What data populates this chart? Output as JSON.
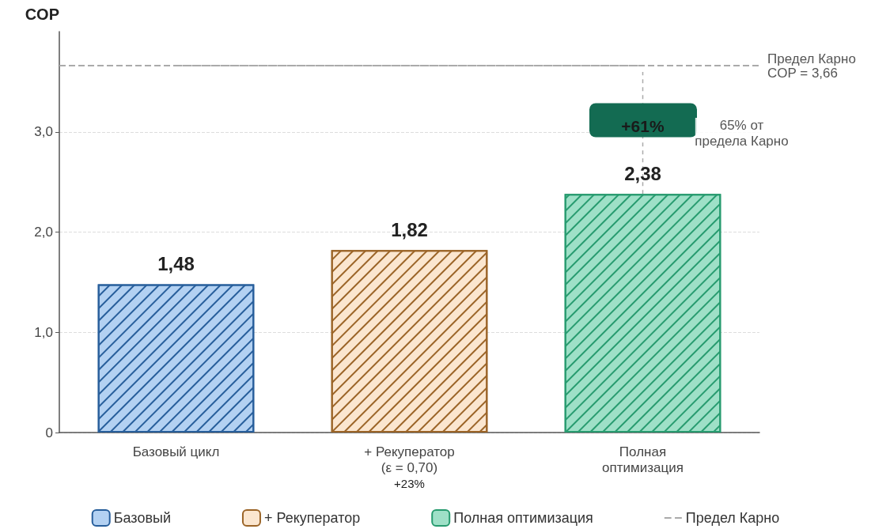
{
  "chart_data": {
    "type": "bar",
    "ylabel": "COP",
    "categories": [
      "Базовый цикл",
      "+ Рекуператор\n(ε = 0,70)",
      "Полная\nоптимизация"
    ],
    "series": [
      {
        "name": "Базовый",
        "color": "#b3d1f2",
        "values": [
          1.48,
          null,
          null
        ],
        "value_labels": [
          "1,48",
          null,
          null
        ]
      },
      {
        "name": "+ Рекуператор",
        "color": "#fbe6cf",
        "values": [
          null,
          1.82,
          null
        ],
        "value_labels": [
          null,
          "1,82",
          null
        ]
      },
      {
        "name": "Полная оптимизация",
        "color": "#9ee0c7",
        "values": [
          null,
          null,
          2.38
        ],
        "value_labels": [
          null,
          null,
          "2,38"
        ]
      },
      {
        "name": "Предел Карно",
        "type": "line",
        "color": "#aaaaaa",
        "line_style": "dashed",
        "values": [
          3.66,
          3.66,
          3.66
        ]
      }
    ],
    "stacked": true,
    "ylim": [
      0,
      4
    ],
    "yticks": [
      0,
      {
        "value": 1,
        "label": "1,0"
      },
      {
        "value": 2,
        "label": "2,0"
      },
      {
        "value": 3,
        "label": "3,0"
      }
    ],
    "grid": "y",
    "legend": "bottom",
    "ref_lines": [
      {
        "axis": "y",
        "value": 3.66,
        "label": "Предел Карно\nCOP = 3,66",
        "color": "#aaaaaa",
        "line_style": "dashed"
      }
    ],
    "annotations": [
      "+61%",
      "65% от\nпредела Карно",
      "+23%"
    ]
  }
}
